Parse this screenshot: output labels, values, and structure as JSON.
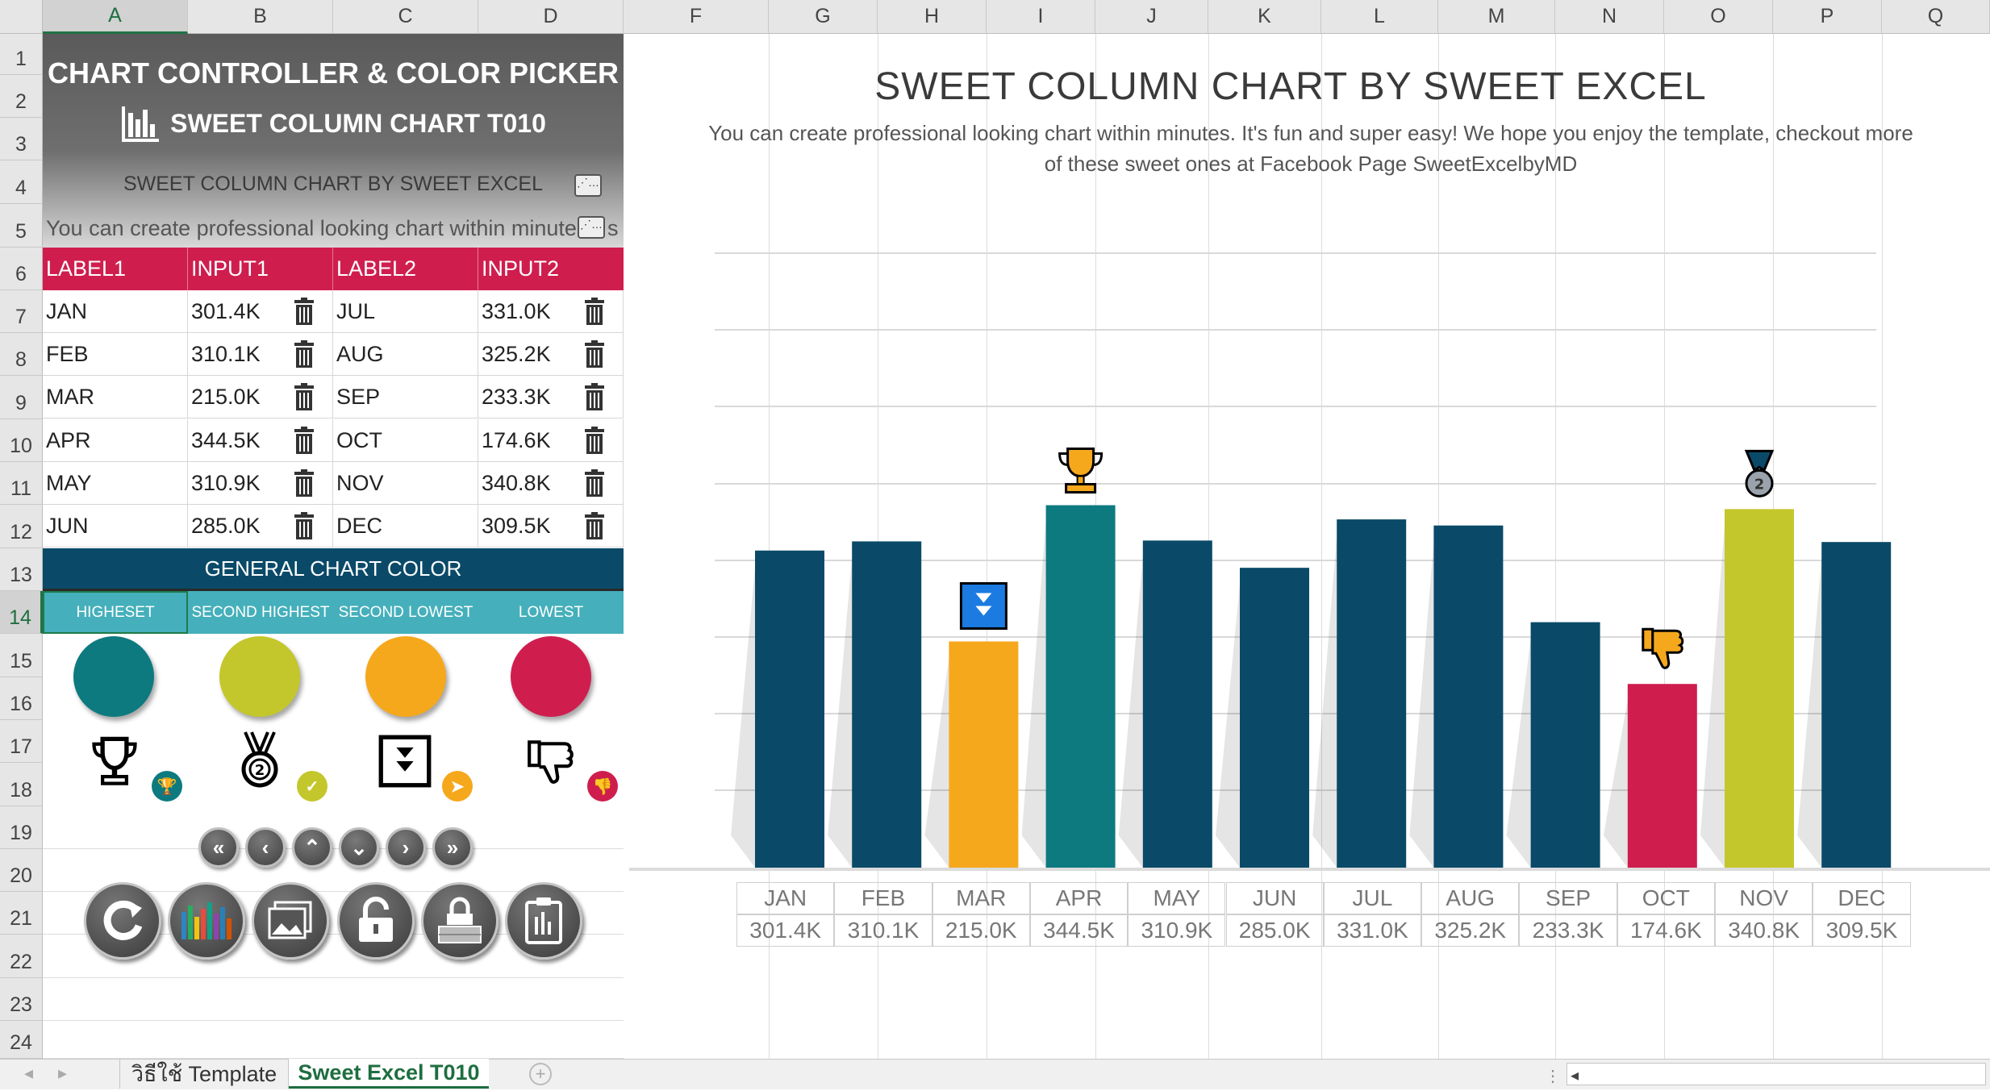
{
  "columns": [
    "A",
    "B",
    "C",
    "D",
    "F",
    "G",
    "H",
    "I",
    "J",
    "K",
    "L",
    "M",
    "N",
    "O",
    "P",
    "Q"
  ],
  "rows": [
    "1",
    "2",
    "3",
    "4",
    "5",
    "6",
    "7",
    "8",
    "9",
    "10",
    "11",
    "12",
    "13",
    "14",
    "15",
    "16",
    "17",
    "18",
    "19",
    "20",
    "21",
    "22",
    "23",
    "24"
  ],
  "panel": {
    "title": "CHART CONTROLLER & COLOR PICKER",
    "subtitle": "SWEET COLUMN CHART T010",
    "chart_title_field": "SWEET COLUMN CHART BY SWEET EXCEL",
    "chart_desc_field": "You can create professional looking chart within minutes",
    "desc_overflow": "s",
    "headers": [
      "LABEL1",
      "INPUT1",
      "LABEL2",
      "INPUT2"
    ],
    "table": [
      {
        "l1": "JAN",
        "v1": "301.4K",
        "l2": "JUL",
        "v2": "331.0K"
      },
      {
        "l1": "FEB",
        "v1": "310.1K",
        "l2": "AUG",
        "v2": "325.2K"
      },
      {
        "l1": "MAR",
        "v1": "215.0K",
        "l2": "SEP",
        "v2": "233.3K"
      },
      {
        "l1": "APR",
        "v1": "344.5K",
        "l2": "OCT",
        "v2": "174.6K"
      },
      {
        "l1": "MAY",
        "v1": "310.9K",
        "l2": "NOV",
        "v2": "340.8K"
      },
      {
        "l1": "JUN",
        "v1": "285.0K",
        "l2": "DEC",
        "v2": "309.5K"
      }
    ],
    "general_color_title": "GENERAL CHART COLOR",
    "color_labels": [
      "HIGHESET",
      "SECOND HIGHEST",
      "SECOND LOWEST",
      "LOWEST"
    ],
    "colors": {
      "highest": "#0d7a80",
      "second_highest": "#c3c72b",
      "second_lowest": "#f5a81c",
      "lowest": "#cf1e4e",
      "default": "#0a4a68"
    },
    "icons": [
      "trophy-icon",
      "medal-icon",
      "arrow-down-box-icon",
      "thumbs-down-icon"
    ],
    "nav_buttons": [
      "«",
      "‹",
      "⌃",
      "⌄",
      "›",
      "»"
    ],
    "action_buttons": [
      "refresh-icon",
      "bar-chart-icon",
      "image-icon",
      "unlock-icon",
      "lock-icon",
      "clipboard-icon"
    ]
  },
  "chart": {
    "title": "SWEET COLUMN CHART BY SWEET EXCEL",
    "subtitle_line1": "You can create professional looking chart within minutes. It's fun and super easy! We hope you enjoy the template, checkout more",
    "subtitle_line2": "of these sweet ones at Facebook Page SweetExcelbyMD"
  },
  "chart_data": {
    "type": "bar",
    "categories": [
      "JAN",
      "FEB",
      "MAR",
      "APR",
      "MAY",
      "JUN",
      "JUL",
      "AUG",
      "SEP",
      "OCT",
      "NOV",
      "DEC"
    ],
    "values": [
      301.4,
      310.1,
      215.0,
      344.5,
      310.9,
      285.0,
      331.0,
      325.2,
      233.3,
      174.6,
      340.8,
      309.5
    ],
    "labels": [
      "301.4K",
      "310.1K",
      "215.0K",
      "344.5K",
      "310.9K",
      "285.0K",
      "331.0K",
      "325.2K",
      "233.3K",
      "174.6K",
      "340.8K",
      "309.5K"
    ],
    "ylim": [
      0,
      400
    ],
    "grid": true,
    "title": "SWEET COLUMN CHART BY SWEET EXCEL"
  },
  "tabs": {
    "sheet1": "วิธีใช้ Template",
    "sheet2": "Sweet Excel T010"
  }
}
